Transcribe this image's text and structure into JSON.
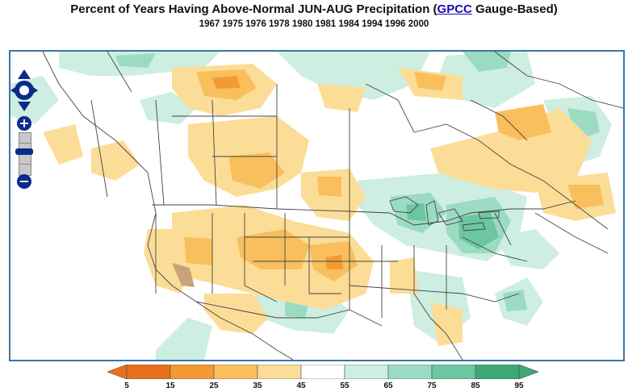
{
  "header": {
    "title_prefix": "Percent of Years Having Above-Normal JUN-AUG Precipitation (",
    "title_link": "GPCC",
    "title_suffix": " Gauge-Based)",
    "years": "1967 1975 1976 1978 1980 1981 1984 1994 1996 2000"
  },
  "controls": {
    "zoom_in": "+",
    "zoom_out": "−"
  },
  "legend": {
    "labels": [
      "5",
      "15",
      "25",
      "35",
      "45",
      "55",
      "65",
      "75",
      "85",
      "95"
    ],
    "colors": [
      "#e8701a",
      "#f39a35",
      "#f8bf5c",
      "#fcdd97",
      "#ffffff",
      "#ffffff",
      "#cdeee0",
      "#9bdbc3",
      "#6cc6a2",
      "#3ea873"
    ]
  },
  "map": {
    "region": "North America",
    "boundary_color": "#444444",
    "frame_color": "#3a74a8"
  }
}
